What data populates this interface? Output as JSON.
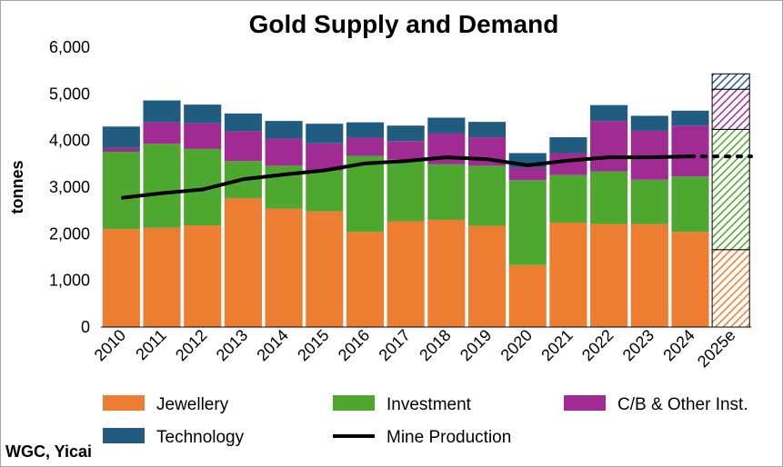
{
  "source_note": "WGC, Yicai",
  "chart_data": {
    "type": "bar",
    "title": "Gold Supply and Demand",
    "ylabel": "tonnes",
    "xlabel": "",
    "ylim": [
      0,
      6000
    ],
    "yticks": [
      0,
      1000,
      2000,
      3000,
      4000,
      5000,
      6000
    ],
    "ytick_labels": [
      "0",
      "1,000",
      "2,000",
      "3,000",
      "4,000",
      "5,000",
      "6,000"
    ],
    "categories": [
      "2010",
      "2011",
      "2012",
      "2013",
      "2014",
      "2015",
      "2016",
      "2017",
      "2018",
      "2019",
      "2020",
      "2021",
      "2022",
      "2023",
      "2024",
      "2025e"
    ],
    "estimate_category": "2025e",
    "stacked": true,
    "grid": false,
    "legend_position": "bottom",
    "series": [
      {
        "name": "Jewellery",
        "type": "bar",
        "color": "#ED7D31",
        "values": [
          2100,
          2130,
          2180,
          2760,
          2540,
          2480,
          2040,
          2270,
          2300,
          2170,
          1330,
          2240,
          2210,
          2210,
          2040,
          1660
        ]
      },
      {
        "name": "Investment",
        "type": "bar",
        "color": "#4EA72E",
        "values": [
          1660,
          1800,
          1640,
          800,
          920,
          880,
          1630,
          1320,
          1190,
          1290,
          1820,
          1020,
          1130,
          950,
          1190,
          2580
        ]
      },
      {
        "name": "C/B & Other Inst.",
        "type": "bar",
        "color": "#A02B93",
        "values": [
          80,
          460,
          550,
          640,
          580,
          580,
          390,
          400,
          660,
          610,
          270,
          470,
          1080,
          1050,
          1090,
          860
        ]
      },
      {
        "name": "Technology",
        "type": "bar",
        "color": "#1F5C80",
        "values": [
          460,
          470,
          400,
          380,
          380,
          420,
          330,
          330,
          340,
          330,
          310,
          340,
          340,
          320,
          320,
          330
        ]
      },
      {
        "name": "Mine Production",
        "type": "line",
        "color": "#000000",
        "values": [
          2770,
          2870,
          2950,
          3170,
          3270,
          3360,
          3510,
          3560,
          3640,
          3600,
          3470,
          3570,
          3640,
          3640,
          3660,
          3660
        ]
      }
    ]
  }
}
